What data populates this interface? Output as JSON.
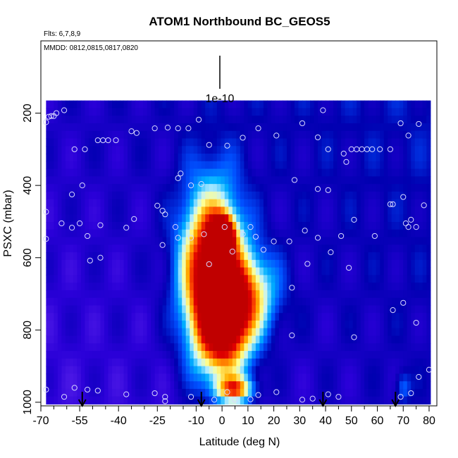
{
  "chart_data": {
    "type": "heatmap",
    "title": "ATOM1 Northbound BC_GEOS5",
    "flights_label": "Flts: 6,7,8,9",
    "dates_label": "MMDD: 0812,0815,0817,0820",
    "xlabel": "Latitude (deg N)",
    "ylabel": "PSXC (mbar)",
    "xlim": [
      -70,
      83
    ],
    "ylim": [
      1010,
      0
    ],
    "x_ticks": [
      -70,
      -55,
      -40,
      -25,
      -10,
      0,
      10,
      20,
      30,
      40,
      50,
      60,
      70,
      80
    ],
    "x_tick_labels": [
      "-70",
      "-55",
      "-40",
      "-25",
      "-10",
      "0",
      "10",
      "20",
      "30",
      "40",
      "50",
      "60",
      "70",
      "80"
    ],
    "x_minor_ticks": [
      -65,
      -60,
      -50,
      -45,
      -35,
      -30,
      -20,
      -15,
      -5,
      5,
      15,
      25,
      35,
      45,
      55,
      65,
      75
    ],
    "y_ticks": [
      200,
      400,
      600,
      800,
      1000
    ],
    "y_tick_labels": [
      "200",
      "400",
      "600",
      "800",
      "1000"
    ],
    "scale_label": "1e-10",
    "grid": false,
    "field_pressure_top": 165,
    "field_pressure_bottom": 1000,
    "field_lat_left": -68,
    "field_lat_right": 80,
    "colors": {
      "background": "#7f2ef0",
      "scale": [
        "#6a2ef2",
        "#2a00d8",
        "#0000b0",
        "#0050ff",
        "#00b0ff",
        "#c0f0ff",
        "#ffff90",
        "#ffb000",
        "#ff5000",
        "#e00000",
        "#c00000"
      ]
    },
    "plumes": [
      {
        "lat": -4,
        "p": 650,
        "sx": 8,
        "sp": 160,
        "amp": 1.0
      },
      {
        "lat": 0,
        "p": 540,
        "sx": 3,
        "sp": 35,
        "amp": 0.95
      },
      {
        "lat": 2,
        "p": 800,
        "sx": 7,
        "sp": 90,
        "amp": 0.55
      },
      {
        "lat": 5,
        "p": 965,
        "sx": 5,
        "sp": 25,
        "amp": 0.55
      },
      {
        "lat": 10,
        "p": 700,
        "sx": 8,
        "sp": 80,
        "amp": 0.45
      },
      {
        "lat": 70,
        "p": 960,
        "sx": 2,
        "sp": 30,
        "amp": 0.18
      }
    ],
    "samples": [
      [
        -68,
        225
      ],
      [
        -67,
        210
      ],
      [
        -66,
        208
      ],
      [
        -65,
        208
      ],
      [
        -64,
        200
      ],
      [
        -61,
        192
      ],
      [
        -57,
        300
      ],
      [
        -53,
        300
      ],
      [
        -48,
        275
      ],
      [
        -46,
        275
      ],
      [
        -44,
        275
      ],
      [
        -41,
        275
      ],
      [
        -35,
        250
      ],
      [
        -33,
        255
      ],
      [
        -26,
        242
      ],
      [
        -21,
        240
      ],
      [
        -17,
        242
      ],
      [
        -13,
        242
      ],
      [
        -9,
        218
      ],
      [
        -5,
        288
      ],
      [
        2,
        290
      ],
      [
        8,
        268
      ],
      [
        14,
        242
      ],
      [
        21,
        262
      ],
      [
        31,
        228
      ],
      [
        37,
        267
      ],
      [
        39,
        192
      ],
      [
        41,
        300
      ],
      [
        47,
        312
      ],
      [
        48,
        335
      ],
      [
        50,
        300
      ],
      [
        52,
        300
      ],
      [
        54,
        300
      ],
      [
        56,
        300
      ],
      [
        58,
        300
      ],
      [
        61,
        300
      ],
      [
        65,
        300
      ],
      [
        69,
        228
      ],
      [
        72,
        262
      ],
      [
        76,
        230
      ],
      [
        -17,
        380
      ],
      [
        -16,
        367
      ],
      [
        -12,
        400
      ],
      [
        -8,
        396
      ],
      [
        28,
        385
      ],
      [
        37,
        410
      ],
      [
        41,
        413
      ],
      [
        -58,
        425
      ],
      [
        -54,
        400
      ],
      [
        -25,
        456
      ],
      [
        -22,
        480
      ],
      [
        -23,
        470
      ],
      [
        -34,
        493
      ],
      [
        -37,
        517
      ],
      [
        -68,
        473
      ],
      [
        -62,
        505
      ],
      [
        -58,
        517
      ],
      [
        -55,
        505
      ],
      [
        -52,
        540
      ],
      [
        -47,
        510
      ],
      [
        -18,
        515
      ],
      [
        -17,
        545
      ],
      [
        -23,
        565
      ],
      [
        -12,
        545
      ],
      [
        -7,
        535
      ],
      [
        1,
        515
      ],
      [
        4,
        583
      ],
      [
        8,
        535
      ],
      [
        11,
        515
      ],
      [
        13,
        542
      ],
      [
        16,
        578
      ],
      [
        20,
        555
      ],
      [
        26,
        555
      ],
      [
        32,
        525
      ],
      [
        33,
        617
      ],
      [
        37,
        545
      ],
      [
        42,
        585
      ],
      [
        46,
        540
      ],
      [
        49,
        628
      ],
      [
        51,
        495
      ],
      [
        59,
        540
      ],
      [
        65,
        452
      ],
      [
        66,
        452
      ],
      [
        70,
        432
      ],
      [
        71,
        505
      ],
      [
        72,
        515
      ],
      [
        73,
        495
      ],
      [
        75,
        515
      ],
      [
        78,
        455
      ],
      [
        -68,
        548
      ],
      [
        -51,
        608
      ],
      [
        -47,
        600
      ],
      [
        -5,
        618
      ],
      [
        27,
        683
      ],
      [
        27,
        815
      ],
      [
        51,
        820
      ],
      [
        66,
        745
      ],
      [
        70,
        725
      ],
      [
        75,
        780
      ],
      [
        76,
        930
      ],
      [
        80,
        910
      ],
      [
        -68,
        965
      ],
      [
        -61,
        985
      ],
      [
        -57,
        960
      ],
      [
        -52,
        965
      ],
      [
        -48,
        968
      ],
      [
        -37,
        978
      ],
      [
        -26,
        975
      ],
      [
        -22,
        985
      ],
      [
        -22,
        997
      ],
      [
        -12,
        985
      ],
      [
        -3,
        993
      ],
      [
        2,
        972
      ],
      [
        5,
        993
      ],
      [
        11,
        992
      ],
      [
        14,
        980
      ],
      [
        21,
        972
      ],
      [
        31,
        993
      ],
      [
        35,
        990
      ],
      [
        41,
        978
      ],
      [
        45,
        985
      ],
      [
        69,
        985
      ],
      [
        73,
        975
      ]
    ],
    "arrows": [
      -54,
      -8,
      39,
      67
    ]
  }
}
